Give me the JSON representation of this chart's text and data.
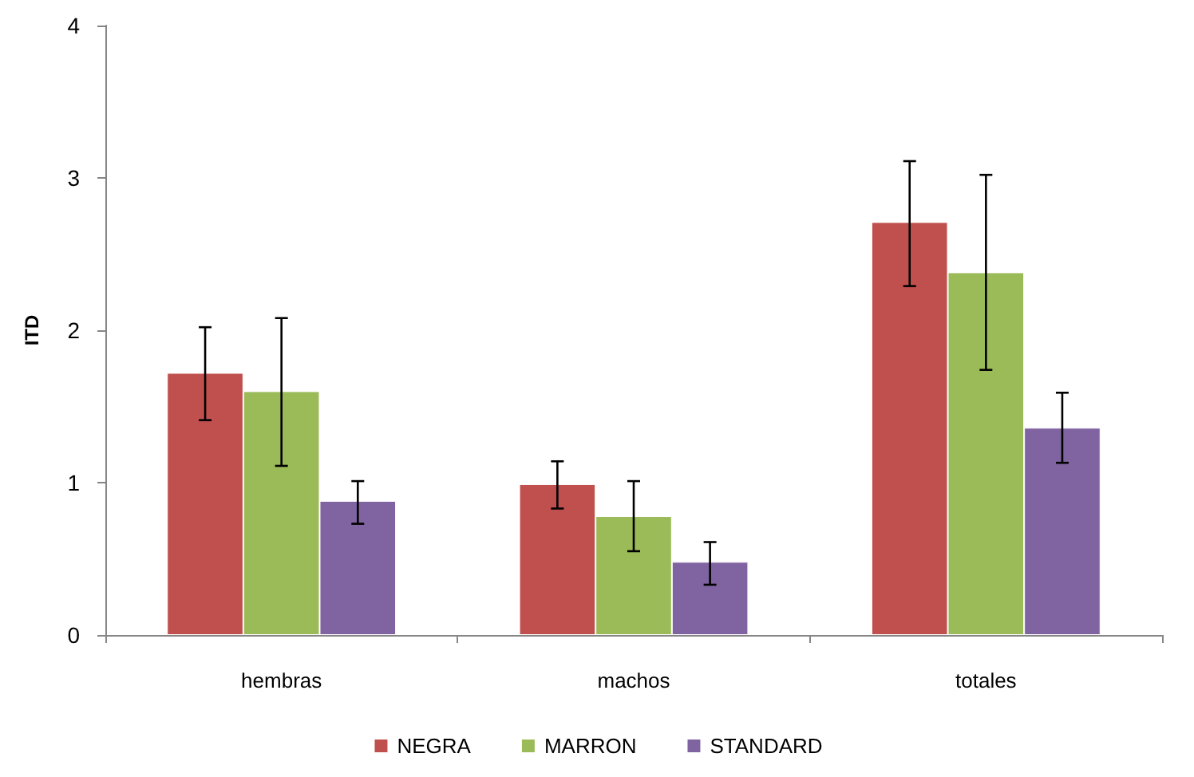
{
  "chart_data": {
    "type": "bar",
    "ylabel": "ITD",
    "categories": [
      "hembras",
      "machos",
      "totales"
    ],
    "series": [
      {
        "name": "NEGRA",
        "color": "#c0504d",
        "values": [
          1.72,
          0.99,
          2.71
        ],
        "errors": [
          [
            1.41,
            2.02
          ],
          [
            0.83,
            1.14
          ],
          [
            2.29,
            3.11
          ]
        ]
      },
      {
        "name": "MARRON",
        "color": "#9bbb59",
        "values": [
          1.6,
          0.78,
          2.38
        ],
        "errors": [
          [
            1.11,
            2.08
          ],
          [
            0.55,
            1.01
          ],
          [
            1.74,
            3.02
          ]
        ]
      },
      {
        "name": "STANDARD",
        "color": "#8064a2",
        "values": [
          0.88,
          0.48,
          1.36
        ],
        "errors": [
          [
            0.73,
            1.01
          ],
          [
            0.33,
            0.61
          ],
          [
            1.13,
            1.59
          ]
        ]
      }
    ],
    "ylim": [
      0,
      4
    ],
    "yticks": [
      0,
      1,
      2,
      3,
      4
    ],
    "grid": false,
    "legend": "bottom"
  }
}
